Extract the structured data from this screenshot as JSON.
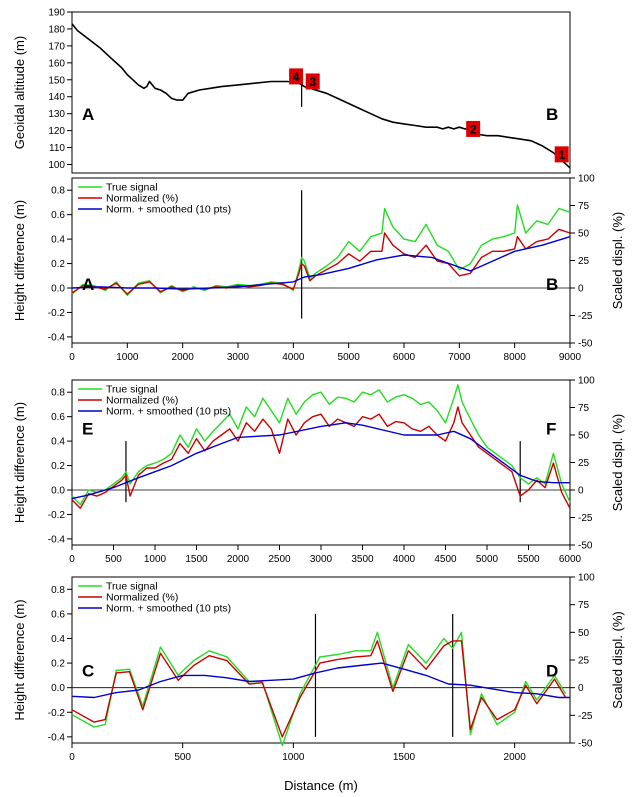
{
  "figure": {
    "xlabel": "Distance (m)",
    "colors": {
      "true_signal": "#22dd22",
      "normalized": "#cc0000",
      "smoothed": "#0000cc",
      "marker": "#dd0000",
      "profile": "#000000"
    }
  },
  "chart_data": [
    {
      "type": "line",
      "ylabel": "Geoidal altitude (m)",
      "xlim": [
        0,
        9000
      ],
      "ylim": [
        95,
        190
      ],
      "yticks": [
        100,
        110,
        120,
        130,
        140,
        150,
        160,
        170,
        180,
        190
      ],
      "grid": false,
      "labels": [
        "A",
        "B"
      ],
      "markers": [
        {
          "text": "4",
          "x": 4050,
          "y": 152
        },
        {
          "text": "3",
          "x": 4350,
          "y": 149
        },
        {
          "text": "2",
          "x": 7250,
          "y": 121
        },
        {
          "text": "1",
          "x": 8850,
          "y": 106
        }
      ],
      "vlines": [
        4150
      ],
      "series": [
        {
          "x": [
            0,
            100,
            300,
            500,
            700,
            900,
            1000,
            1100,
            1200,
            1300,
            1350,
            1400,
            1500,
            1600,
            1700,
            1800,
            1900,
            2000,
            2100,
            2300,
            2500,
            2700,
            3000,
            3300,
            3600,
            3900,
            4100,
            4200,
            4400,
            4600,
            4800,
            5000,
            5200,
            5400,
            5600,
            5800,
            6000,
            6200,
            6400,
            6600,
            6700,
            6800,
            6900,
            7000,
            7100,
            7200,
            7300,
            7500,
            7700,
            7900,
            8100,
            8300,
            8500,
            8600,
            8700,
            8800,
            8900,
            9000
          ],
          "values": [
            183,
            179,
            174,
            169,
            163,
            157,
            153,
            150,
            147,
            145,
            146,
            149,
            145,
            144,
            142,
            139,
            138,
            138,
            142,
            144,
            145,
            146,
            147,
            148,
            149,
            149,
            148,
            146,
            144,
            142,
            139,
            136,
            133,
            130,
            127,
            125,
            124,
            123,
            122,
            122,
            121,
            122,
            121,
            122,
            121,
            121,
            118,
            117,
            117,
            116,
            115,
            114,
            111,
            109,
            107,
            104,
            101,
            98
          ]
        }
      ]
    },
    {
      "type": "line",
      "ylabel": "Height difference (m)",
      "y2label": "Scaled displ. (%)",
      "xlim": [
        0,
        9000
      ],
      "ylim": [
        -0.45,
        0.9
      ],
      "y2lim": [
        -50,
        100
      ],
      "xticks": [
        0,
        1000,
        2000,
        3000,
        4000,
        5000,
        6000,
        7000,
        8000,
        9000
      ],
      "yticks": [
        -0.4,
        -0.2,
        0.0,
        0.2,
        0.4,
        0.6,
        0.8
      ],
      "y2ticks": [
        -50,
        -25,
        0,
        25,
        50,
        75,
        100
      ],
      "legend": [
        "True signal",
        "Normalized (%)",
        "Norm. + smoothed (10 pts)"
      ],
      "labels": [
        "A",
        "B"
      ],
      "vlines": [
        4150
      ],
      "series": [
        {
          "name": "True signal",
          "x": [
            0,
            200,
            400,
            600,
            800,
            1000,
            1200,
            1400,
            1600,
            1800,
            2000,
            2200,
            2400,
            2600,
            2800,
            3000,
            3200,
            3400,
            3600,
            3800,
            4000,
            4100,
            4150,
            4200,
            4300,
            4400,
            4600,
            4800,
            5000,
            5200,
            5400,
            5600,
            5650,
            5800,
            6000,
            6200,
            6400,
            6600,
            6800,
            7000,
            7200,
            7400,
            7600,
            7800,
            8000,
            8050,
            8200,
            8400,
            8600,
            8800,
            9000
          ],
          "values": [
            -0.05,
            0.03,
            0.02,
            -0.02,
            0.05,
            -0.06,
            0.04,
            0.06,
            -0.04,
            0.02,
            -0.03,
            0.01,
            -0.02,
            0.02,
            0.01,
            0.03,
            0.02,
            0.03,
            0.05,
            0.04,
            -0.02,
            0.15,
            0.25,
            0.22,
            0.08,
            0.12,
            0.18,
            0.25,
            0.38,
            0.3,
            0.42,
            0.45,
            0.65,
            0.5,
            0.4,
            0.38,
            0.52,
            0.35,
            0.3,
            0.15,
            0.2,
            0.35,
            0.4,
            0.42,
            0.45,
            0.68,
            0.45,
            0.55,
            0.52,
            0.65,
            0.62
          ]
        },
        {
          "name": "Normalized (%)",
          "x": [
            0,
            200,
            400,
            600,
            800,
            1000,
            1200,
            1400,
            1600,
            1800,
            2000,
            2200,
            2400,
            2600,
            2800,
            3000,
            3200,
            3400,
            3600,
            3800,
            4000,
            4100,
            4150,
            4200,
            4300,
            4400,
            4600,
            4800,
            5000,
            5200,
            5400,
            5600,
            5650,
            5800,
            6000,
            6200,
            6400,
            6600,
            6800,
            7000,
            7200,
            7400,
            7600,
            7800,
            8000,
            8050,
            8200,
            8400,
            8600,
            8800,
            9000
          ],
          "values": [
            -0.04,
            0.02,
            0.01,
            -0.01,
            0.04,
            -0.05,
            0.03,
            0.05,
            -0.03,
            0.01,
            -0.02,
            0.0,
            -0.01,
            0.01,
            0.0,
            0.02,
            0.01,
            0.02,
            0.04,
            0.03,
            -0.01,
            0.12,
            0.2,
            0.18,
            0.06,
            0.1,
            0.15,
            0.2,
            0.28,
            0.22,
            0.3,
            0.3,
            0.45,
            0.35,
            0.28,
            0.25,
            0.35,
            0.22,
            0.2,
            0.1,
            0.12,
            0.25,
            0.3,
            0.3,
            0.32,
            0.42,
            0.32,
            0.38,
            0.4,
            0.48,
            0.45
          ]
        },
        {
          "name": "Norm. + smoothed (10 pts)",
          "x": [
            0,
            500,
            1000,
            1500,
            2000,
            2500,
            3000,
            3500,
            4000,
            4200,
            4500,
            5000,
            5500,
            6000,
            6500,
            7000,
            7200,
            7500,
            8000,
            8500,
            9000
          ],
          "values": [
            0.0,
            0.01,
            0.0,
            0.0,
            -0.01,
            0.0,
            0.01,
            0.03,
            0.05,
            0.09,
            0.11,
            0.16,
            0.23,
            0.27,
            0.25,
            0.17,
            0.14,
            0.2,
            0.3,
            0.35,
            0.42
          ]
        }
      ]
    },
    {
      "type": "line",
      "ylabel": "Height difference (m)",
      "y2label": "Scaled displ. (%)",
      "xlim": [
        0,
        6000
      ],
      "ylim": [
        -0.45,
        0.9
      ],
      "y2lim": [
        -50,
        100
      ],
      "xticks": [
        0,
        500,
        1000,
        1500,
        2000,
        2500,
        3000,
        3500,
        4000,
        4500,
        5000,
        5500,
        6000
      ],
      "yticks": [
        -0.4,
        -0.2,
        0.0,
        0.2,
        0.4,
        0.6,
        0.8
      ],
      "y2ticks": [
        -50,
        -25,
        0,
        25,
        50,
        75,
        100
      ],
      "legend": [
        "True signal",
        "Normalized (%)",
        "Norm. + smoothed (10 pts)"
      ],
      "labels": [
        "E",
        "F"
      ],
      "vlines": [
        650,
        5400
      ],
      "series": [
        {
          "name": "True signal",
          "x": [
            0,
            100,
            200,
            300,
            400,
            500,
            600,
            650,
            700,
            800,
            900,
            1000,
            1100,
            1200,
            1300,
            1400,
            1500,
            1600,
            1700,
            1800,
            1900,
            2000,
            2100,
            2200,
            2300,
            2400,
            2500,
            2600,
            2700,
            2800,
            2900,
            3000,
            3100,
            3200,
            3300,
            3400,
            3500,
            3600,
            3700,
            3800,
            3900,
            4000,
            4100,
            4200,
            4300,
            4400,
            4500,
            4600,
            4650,
            4700,
            4800,
            4900,
            5000,
            5100,
            5200,
            5300,
            5400,
            5500,
            5600,
            5700,
            5800,
            5900,
            6000
          ],
          "values": [
            -0.05,
            -0.12,
            0.0,
            -0.02,
            0.0,
            0.05,
            0.1,
            0.15,
            0.05,
            0.15,
            0.2,
            0.22,
            0.25,
            0.3,
            0.45,
            0.35,
            0.5,
            0.4,
            0.48,
            0.55,
            0.62,
            0.5,
            0.68,
            0.6,
            0.75,
            0.65,
            0.55,
            0.75,
            0.62,
            0.72,
            0.78,
            0.8,
            0.7,
            0.76,
            0.75,
            0.72,
            0.8,
            0.78,
            0.82,
            0.72,
            0.76,
            0.78,
            0.75,
            0.7,
            0.72,
            0.65,
            0.55,
            0.75,
            0.86,
            0.72,
            0.58,
            0.45,
            0.35,
            0.3,
            0.25,
            0.2,
            0.1,
            0.05,
            0.1,
            0.05,
            0.3,
            0.05,
            -0.1
          ]
        },
        {
          "name": "Normalized (%)",
          "x": [
            0,
            100,
            200,
            300,
            400,
            500,
            600,
            650,
            700,
            800,
            900,
            1000,
            1100,
            1200,
            1300,
            1400,
            1500,
            1600,
            1700,
            1800,
            1900,
            2000,
            2100,
            2200,
            2300,
            2400,
            2500,
            2600,
            2700,
            2800,
            2900,
            3000,
            3100,
            3200,
            3300,
            3400,
            3500,
            3600,
            3700,
            3800,
            3900,
            4000,
            4100,
            4200,
            4300,
            4400,
            4500,
            4600,
            4650,
            4700,
            4800,
            4900,
            5000,
            5100,
            5200,
            5300,
            5400,
            5500,
            5600,
            5700,
            5800,
            5900,
            6000
          ],
          "values": [
            -0.08,
            -0.15,
            -0.03,
            -0.05,
            -0.02,
            0.03,
            0.08,
            0.12,
            -0.05,
            0.12,
            0.18,
            0.18,
            0.22,
            0.25,
            0.38,
            0.3,
            0.42,
            0.32,
            0.4,
            0.45,
            0.5,
            0.4,
            0.55,
            0.48,
            0.58,
            0.5,
            0.3,
            0.58,
            0.45,
            0.55,
            0.6,
            0.62,
            0.52,
            0.58,
            0.55,
            0.52,
            0.6,
            0.58,
            0.62,
            0.52,
            0.56,
            0.55,
            0.5,
            0.48,
            0.52,
            0.45,
            0.4,
            0.55,
            0.68,
            0.55,
            0.45,
            0.35,
            0.3,
            0.25,
            0.2,
            0.15,
            -0.05,
            0.0,
            0.08,
            0.02,
            0.22,
            -0.02,
            -0.15
          ]
        },
        {
          "name": "Norm. + smoothed (10 pts)",
          "x": [
            0,
            200,
            500,
            800,
            1000,
            1200,
            1500,
            1800,
            2000,
            2500,
            3000,
            3300,
            3500,
            4000,
            4400,
            4600,
            4800,
            5000,
            5200,
            5400,
            5600,
            5800,
            6000
          ],
          "values": [
            -0.07,
            -0.04,
            0.02,
            0.1,
            0.15,
            0.2,
            0.3,
            0.38,
            0.43,
            0.45,
            0.52,
            0.55,
            0.53,
            0.45,
            0.45,
            0.48,
            0.42,
            0.32,
            0.22,
            0.12,
            0.07,
            0.06,
            0.06
          ]
        }
      ]
    },
    {
      "type": "line",
      "ylabel": "Height difference (m)",
      "y2label": "Scaled displ. (%)",
      "xlim": [
        0,
        2250
      ],
      "ylim": [
        -0.45,
        0.9
      ],
      "y2lim": [
        -50,
        100
      ],
      "xticks": [
        0,
        500,
        1000,
        1500,
        2000
      ],
      "yticks": [
        -0.4,
        -0.2,
        0.0,
        0.2,
        0.4,
        0.6,
        0.8
      ],
      "y2ticks": [
        -50,
        -25,
        0,
        25,
        50,
        75,
        100
      ],
      "legend": [
        "True signal",
        "Normalized (%)",
        "Norm. + smoothed (10 pts)"
      ],
      "labels": [
        "C",
        "D"
      ],
      "vlines": [
        1100,
        1720
      ],
      "series": [
        {
          "name": "True signal",
          "x": [
            0,
            100,
            150,
            200,
            260,
            320,
            400,
            480,
            550,
            620,
            700,
            800,
            860,
            950,
            1030,
            1120,
            1200,
            1280,
            1350,
            1380,
            1450,
            1520,
            1600,
            1680,
            1720,
            1760,
            1800,
            1850,
            1920,
            2000,
            2050,
            2100,
            2180,
            2230
          ],
          "values": [
            -0.22,
            -0.32,
            -0.3,
            0.14,
            0.15,
            -0.15,
            0.33,
            0.1,
            0.22,
            0.3,
            0.25,
            0.05,
            0.05,
            -0.47,
            -0.05,
            0.25,
            0.27,
            0.3,
            0.3,
            0.45,
            0.0,
            0.35,
            0.2,
            0.4,
            0.32,
            0.45,
            -0.38,
            -0.05,
            -0.3,
            -0.2,
            0.05,
            -0.1,
            0.1,
            -0.05
          ]
        },
        {
          "name": "Normalized (%)",
          "x": [
            0,
            100,
            150,
            200,
            260,
            320,
            400,
            480,
            550,
            620,
            700,
            800,
            860,
            950,
            1030,
            1120,
            1200,
            1280,
            1350,
            1380,
            1450,
            1520,
            1600,
            1680,
            1720,
            1760,
            1800,
            1850,
            1920,
            2000,
            2050,
            2100,
            2180,
            2230
          ],
          "values": [
            -0.18,
            -0.28,
            -0.26,
            0.12,
            0.13,
            -0.18,
            0.28,
            0.06,
            0.18,
            0.26,
            0.22,
            0.03,
            0.04,
            -0.4,
            -0.08,
            0.2,
            0.23,
            0.25,
            0.26,
            0.38,
            -0.03,
            0.3,
            0.15,
            0.34,
            0.38,
            0.38,
            -0.34,
            -0.08,
            -0.26,
            -0.18,
            0.02,
            -0.13,
            0.07,
            -0.08
          ]
        },
        {
          "name": "Norm. + smoothed (10 pts)",
          "x": [
            0,
            100,
            200,
            300,
            400,
            500,
            600,
            700,
            800,
            900,
            1000,
            1100,
            1200,
            1300,
            1400,
            1500,
            1600,
            1700,
            1800,
            1900,
            2000,
            2100,
            2200,
            2250
          ],
          "values": [
            -0.07,
            -0.08,
            -0.04,
            -0.02,
            0.05,
            0.1,
            0.1,
            0.08,
            0.05,
            0.06,
            0.07,
            0.12,
            0.16,
            0.18,
            0.2,
            0.15,
            0.1,
            0.03,
            0.02,
            -0.01,
            -0.04,
            -0.05,
            -0.08,
            -0.08
          ]
        }
      ]
    }
  ]
}
